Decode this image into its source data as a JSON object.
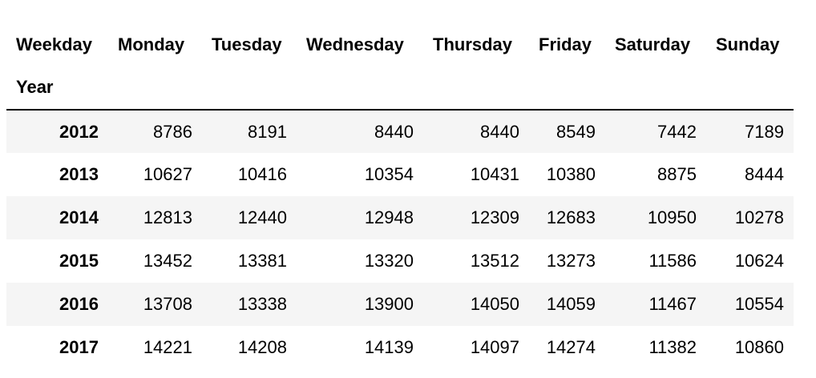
{
  "table": {
    "columns_name": "Weekday",
    "index_name": "Year",
    "columns": [
      "Monday",
      "Tuesday",
      "Wednesday",
      "Thursday",
      "Friday",
      "Saturday",
      "Sunday"
    ],
    "rows": [
      {
        "year": "2012",
        "values": [
          "8786",
          "8191",
          "8440",
          "8440",
          "8549",
          "7442",
          "7189"
        ]
      },
      {
        "year": "2013",
        "values": [
          "10627",
          "10416",
          "10354",
          "10431",
          "10380",
          "8875",
          "8444"
        ]
      },
      {
        "year": "2014",
        "values": [
          "12813",
          "12440",
          "12948",
          "12309",
          "12683",
          "10950",
          "10278"
        ]
      },
      {
        "year": "2015",
        "values": [
          "13452",
          "13381",
          "13320",
          "13512",
          "13273",
          "11586",
          "10624"
        ]
      },
      {
        "year": "2016",
        "values": [
          "13708",
          "13338",
          "13900",
          "14050",
          "14059",
          "11467",
          "10554"
        ]
      },
      {
        "year": "2017",
        "values": [
          "14221",
          "14208",
          "14139",
          "14097",
          "14274",
          "11382",
          "10860"
        ]
      }
    ]
  }
}
